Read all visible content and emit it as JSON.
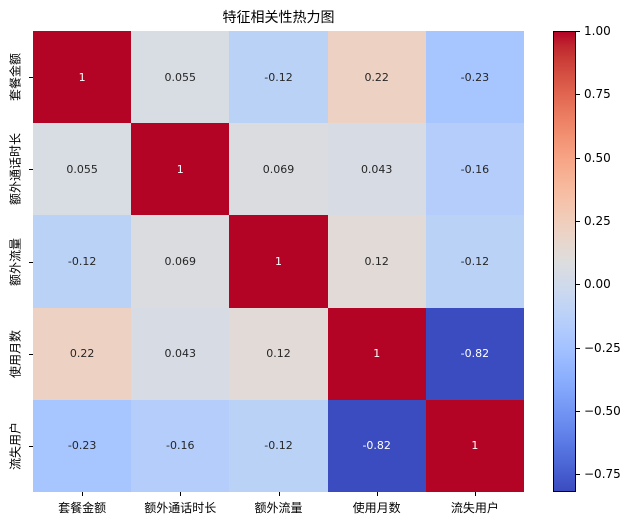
{
  "title": "特征相关性热力图",
  "chart_data": {
    "type": "heatmap",
    "title": "特征相关性热力图",
    "categories": [
      "套餐金额",
      "额外通话时长",
      "额外流量",
      "使用月数",
      "流失用户"
    ],
    "matrix": [
      [
        1,
        0.055,
        -0.12,
        0.22,
        -0.23
      ],
      [
        0.055,
        1,
        0.069,
        0.043,
        -0.16
      ],
      [
        -0.12,
        0.069,
        1,
        0.12,
        -0.12
      ],
      [
        0.22,
        0.043,
        0.12,
        1,
        -0.82
      ],
      [
        -0.23,
        -0.16,
        -0.12,
        -0.82,
        1
      ]
    ],
    "annotations": [
      [
        "1",
        "0.055",
        "-0.12",
        "0.22",
        "-0.23"
      ],
      [
        "0.055",
        "1",
        "0.069",
        "0.043",
        "-0.16"
      ],
      [
        "-0.12",
        "0.069",
        "1",
        "0.12",
        "-0.12"
      ],
      [
        "0.22",
        "0.043",
        "0.12",
        "1",
        "-0.82"
      ],
      [
        "-0.23",
        "-0.16",
        "-0.12",
        "-0.82",
        "1"
      ]
    ],
    "colormap": "coolwarm",
    "vmin": -0.82,
    "vmax": 1.0,
    "legend_position": "right-colorbar",
    "grid": false,
    "colorbar_ticks": [
      "1.00",
      "0.75",
      "0.50",
      "0.25",
      "0.00",
      "−0.25",
      "−0.50",
      "−0.75"
    ],
    "colorbar_tick_values": [
      1.0,
      0.75,
      0.5,
      0.25,
      0.0,
      -0.25,
      -0.5,
      -0.75
    ]
  },
  "colors": {
    "background": "#ffffff",
    "annotation_dark": "#262626",
    "annotation_light": "#ffffff",
    "axis_tick": "#000000",
    "cmap_stops": [
      "#3b4cc0",
      "#445acc",
      "#4d68d7",
      "#5775e1",
      "#6282ea",
      "#6c8ff1",
      "#779af7",
      "#82a6fb",
      "#8db0fe",
      "#98b9ff",
      "#a3c2ff",
      "#aec9fd",
      "#b8d0f9",
      "#c2d5f4",
      "#ccd9ee",
      "#d5dbe6",
      "#dddddd",
      "#e5d8d1",
      "#ecd3c5",
      "#f1ccb9",
      "#f5c4ad",
      "#f7bba0",
      "#f7b194",
      "#f7a687",
      "#f49a7b",
      "#f18d6f",
      "#ec7f63",
      "#e57058",
      "#de604d",
      "#d55042",
      "#cb3e38",
      "#c0282f",
      "#b40426"
    ]
  }
}
